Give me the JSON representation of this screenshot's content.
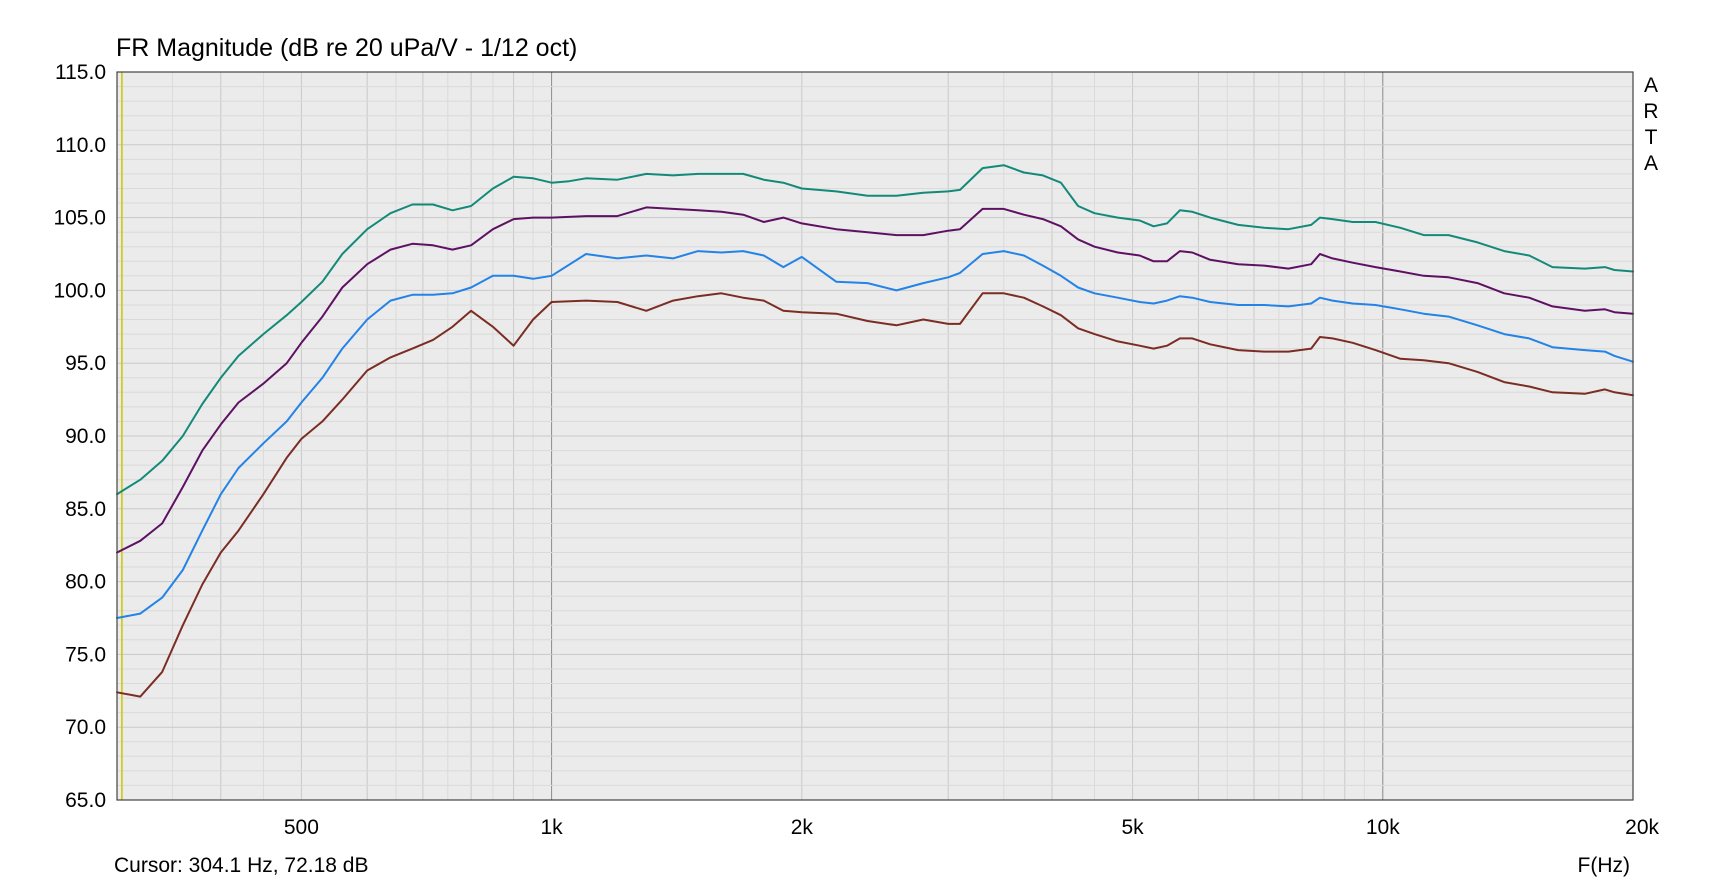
{
  "chart_data": {
    "type": "line",
    "title": "FR Magnitude (dB re 20 uPa/V - 1/12 oct)",
    "xlabel": "F(Hz)",
    "xscale": "log",
    "xlim": [
      300,
      20000
    ],
    "ylim": [
      65,
      115
    ],
    "y_ticks": [
      "115.0",
      "110.0",
      "105.0",
      "100.0",
      "95.0",
      "90.0",
      "85.0",
      "80.0",
      "75.0",
      "70.0",
      "65.0"
    ],
    "x_ticks": [
      {
        "value": 500,
        "label": "500"
      },
      {
        "value": 1000,
        "label": "1k"
      },
      {
        "value": 2000,
        "label": "2k"
      },
      {
        "value": 5000,
        "label": "5k"
      },
      {
        "value": 10000,
        "label": "10k"
      },
      {
        "value": 20000,
        "label": "20k"
      }
    ],
    "grid": true,
    "brand": [
      "A",
      "R",
      "T",
      "A"
    ],
    "cursor_text": "Cursor: 304.1 Hz, 72.18 dB",
    "cursor_freq": 304.1,
    "colors": {
      "background": "#ebebeb",
      "cursor_line": "#c8c800"
    },
    "series": [
      {
        "color": "#138a79",
        "points": [
          [
            300,
            86.0
          ],
          [
            320,
            87.0
          ],
          [
            340,
            88.3
          ],
          [
            360,
            90.0
          ],
          [
            380,
            92.2
          ],
          [
            400,
            94.0
          ],
          [
            420,
            95.5
          ],
          [
            450,
            97.0
          ],
          [
            480,
            98.3
          ],
          [
            500,
            99.2
          ],
          [
            530,
            100.6
          ],
          [
            560,
            102.5
          ],
          [
            600,
            104.2
          ],
          [
            640,
            105.3
          ],
          [
            680,
            105.9
          ],
          [
            720,
            105.9
          ],
          [
            760,
            105.5
          ],
          [
            800,
            105.8
          ],
          [
            850,
            107.0
          ],
          [
            900,
            107.8
          ],
          [
            950,
            107.7
          ],
          [
            1000,
            107.4
          ],
          [
            1050,
            107.5
          ],
          [
            1100,
            107.7
          ],
          [
            1200,
            107.6
          ],
          [
            1300,
            108.0
          ],
          [
            1400,
            107.9
          ],
          [
            1500,
            108.0
          ],
          [
            1600,
            108.0
          ],
          [
            1700,
            108.0
          ],
          [
            1800,
            107.6
          ],
          [
            1900,
            107.4
          ],
          [
            2000,
            107.0
          ],
          [
            2200,
            106.8
          ],
          [
            2400,
            106.5
          ],
          [
            2600,
            106.5
          ],
          [
            2800,
            106.7
          ],
          [
            3000,
            106.8
          ],
          [
            3100,
            106.9
          ],
          [
            3300,
            108.4
          ],
          [
            3500,
            108.6
          ],
          [
            3700,
            108.1
          ],
          [
            3900,
            107.9
          ],
          [
            4100,
            107.4
          ],
          [
            4300,
            105.8
          ],
          [
            4500,
            105.3
          ],
          [
            4800,
            105.0
          ],
          [
            5100,
            104.8
          ],
          [
            5300,
            104.4
          ],
          [
            5500,
            104.6
          ],
          [
            5700,
            105.5
          ],
          [
            5900,
            105.4
          ],
          [
            6200,
            105.0
          ],
          [
            6700,
            104.5
          ],
          [
            7200,
            104.3
          ],
          [
            7700,
            104.2
          ],
          [
            8200,
            104.5
          ],
          [
            8400,
            105.0
          ],
          [
            8700,
            104.9
          ],
          [
            9200,
            104.7
          ],
          [
            9800,
            104.7
          ],
          [
            10500,
            104.3
          ],
          [
            11200,
            103.8
          ],
          [
            12000,
            103.8
          ],
          [
            13000,
            103.3
          ],
          [
            14000,
            102.7
          ],
          [
            15000,
            102.4
          ],
          [
            16000,
            101.6
          ],
          [
            17500,
            101.5
          ],
          [
            18500,
            101.6
          ],
          [
            19000,
            101.4
          ],
          [
            20000,
            101.3
          ]
        ]
      },
      {
        "color": "#5e1163",
        "points": [
          [
            300,
            82.0
          ],
          [
            320,
            82.8
          ],
          [
            340,
            84.0
          ],
          [
            360,
            86.5
          ],
          [
            380,
            89.0
          ],
          [
            400,
            90.8
          ],
          [
            420,
            92.3
          ],
          [
            450,
            93.6
          ],
          [
            480,
            95.0
          ],
          [
            500,
            96.4
          ],
          [
            530,
            98.2
          ],
          [
            560,
            100.2
          ],
          [
            600,
            101.8
          ],
          [
            640,
            102.8
          ],
          [
            680,
            103.2
          ],
          [
            720,
            103.1
          ],
          [
            760,
            102.8
          ],
          [
            800,
            103.1
          ],
          [
            850,
            104.2
          ],
          [
            900,
            104.9
          ],
          [
            950,
            105.0
          ],
          [
            1000,
            105.0
          ],
          [
            1100,
            105.1
          ],
          [
            1200,
            105.1
          ],
          [
            1300,
            105.7
          ],
          [
            1400,
            105.6
          ],
          [
            1500,
            105.5
          ],
          [
            1600,
            105.4
          ],
          [
            1700,
            105.2
          ],
          [
            1800,
            104.7
          ],
          [
            1900,
            105.0
          ],
          [
            2000,
            104.6
          ],
          [
            2200,
            104.2
          ],
          [
            2400,
            104.0
          ],
          [
            2600,
            103.8
          ],
          [
            2800,
            103.8
          ],
          [
            3000,
            104.1
          ],
          [
            3100,
            104.2
          ],
          [
            3300,
            105.6
          ],
          [
            3500,
            105.6
          ],
          [
            3700,
            105.2
          ],
          [
            3900,
            104.9
          ],
          [
            4100,
            104.4
          ],
          [
            4300,
            103.5
          ],
          [
            4500,
            103.0
          ],
          [
            4800,
            102.6
          ],
          [
            5100,
            102.4
          ],
          [
            5300,
            102.0
          ],
          [
            5500,
            102.0
          ],
          [
            5700,
            102.7
          ],
          [
            5900,
            102.6
          ],
          [
            6200,
            102.1
          ],
          [
            6700,
            101.8
          ],
          [
            7200,
            101.7
          ],
          [
            7700,
            101.5
          ],
          [
            8200,
            101.8
          ],
          [
            8400,
            102.5
          ],
          [
            8700,
            102.2
          ],
          [
            9200,
            101.9
          ],
          [
            9800,
            101.6
          ],
          [
            10500,
            101.3
          ],
          [
            11200,
            101.0
          ],
          [
            12000,
            100.9
          ],
          [
            13000,
            100.5
          ],
          [
            14000,
            99.8
          ],
          [
            15000,
            99.5
          ],
          [
            16000,
            98.9
          ],
          [
            17500,
            98.6
          ],
          [
            18500,
            98.7
          ],
          [
            19000,
            98.5
          ],
          [
            20000,
            98.4
          ]
        ]
      },
      {
        "color": "#2383e6",
        "points": [
          [
            300,
            77.5
          ],
          [
            320,
            77.8
          ],
          [
            340,
            78.9
          ],
          [
            360,
            80.8
          ],
          [
            380,
            83.5
          ],
          [
            400,
            86.0
          ],
          [
            420,
            87.8
          ],
          [
            450,
            89.5
          ],
          [
            480,
            91.0
          ],
          [
            500,
            92.3
          ],
          [
            530,
            94.0
          ],
          [
            560,
            96.0
          ],
          [
            600,
            98.0
          ],
          [
            640,
            99.3
          ],
          [
            680,
            99.7
          ],
          [
            720,
            99.7
          ],
          [
            760,
            99.8
          ],
          [
            800,
            100.2
          ],
          [
            850,
            101.0
          ],
          [
            900,
            101.0
          ],
          [
            950,
            100.8
          ],
          [
            1000,
            101.0
          ],
          [
            1100,
            102.5
          ],
          [
            1200,
            102.2
          ],
          [
            1300,
            102.4
          ],
          [
            1400,
            102.2
          ],
          [
            1500,
            102.7
          ],
          [
            1600,
            102.6
          ],
          [
            1700,
            102.7
          ],
          [
            1800,
            102.4
          ],
          [
            1900,
            101.6
          ],
          [
            2000,
            102.3
          ],
          [
            2200,
            100.6
          ],
          [
            2400,
            100.5
          ],
          [
            2600,
            100.0
          ],
          [
            2800,
            100.5
          ],
          [
            3000,
            100.9
          ],
          [
            3100,
            101.2
          ],
          [
            3300,
            102.5
          ],
          [
            3500,
            102.7
          ],
          [
            3700,
            102.4
          ],
          [
            3900,
            101.7
          ],
          [
            4100,
            101.0
          ],
          [
            4300,
            100.2
          ],
          [
            4500,
            99.8
          ],
          [
            4800,
            99.5
          ],
          [
            5100,
            99.2
          ],
          [
            5300,
            99.1
          ],
          [
            5500,
            99.3
          ],
          [
            5700,
            99.6
          ],
          [
            5900,
            99.5
          ],
          [
            6200,
            99.2
          ],
          [
            6700,
            99.0
          ],
          [
            7200,
            99.0
          ],
          [
            7700,
            98.9
          ],
          [
            8200,
            99.1
          ],
          [
            8400,
            99.5
          ],
          [
            8700,
            99.3
          ],
          [
            9200,
            99.1
          ],
          [
            9800,
            99.0
          ],
          [
            10500,
            98.7
          ],
          [
            11200,
            98.4
          ],
          [
            12000,
            98.2
          ],
          [
            13000,
            97.6
          ],
          [
            14000,
            97.0
          ],
          [
            15000,
            96.7
          ],
          [
            16000,
            96.1
          ],
          [
            17500,
            95.9
          ],
          [
            18500,
            95.8
          ],
          [
            19000,
            95.5
          ],
          [
            20000,
            95.1
          ]
        ]
      },
      {
        "color": "#7b2d23",
        "points": [
          [
            300,
            72.4
          ],
          [
            320,
            72.1
          ],
          [
            340,
            73.8
          ],
          [
            360,
            77.0
          ],
          [
            380,
            79.8
          ],
          [
            400,
            82.0
          ],
          [
            420,
            83.5
          ],
          [
            450,
            86.0
          ],
          [
            480,
            88.5
          ],
          [
            500,
            89.8
          ],
          [
            530,
            91.0
          ],
          [
            560,
            92.5
          ],
          [
            600,
            94.5
          ],
          [
            640,
            95.4
          ],
          [
            680,
            96.0
          ],
          [
            720,
            96.6
          ],
          [
            760,
            97.5
          ],
          [
            800,
            98.6
          ],
          [
            850,
            97.5
          ],
          [
            900,
            96.2
          ],
          [
            950,
            98.0
          ],
          [
            1000,
            99.2
          ],
          [
            1100,
            99.3
          ],
          [
            1200,
            99.2
          ],
          [
            1300,
            98.6
          ],
          [
            1400,
            99.3
          ],
          [
            1500,
            99.6
          ],
          [
            1600,
            99.8
          ],
          [
            1700,
            99.5
          ],
          [
            1800,
            99.3
          ],
          [
            1900,
            98.6
          ],
          [
            2000,
            98.5
          ],
          [
            2200,
            98.4
          ],
          [
            2400,
            97.9
          ],
          [
            2600,
            97.6
          ],
          [
            2800,
            98.0
          ],
          [
            3000,
            97.7
          ],
          [
            3100,
            97.7
          ],
          [
            3300,
            99.8
          ],
          [
            3500,
            99.8
          ],
          [
            3700,
            99.5
          ],
          [
            3900,
            98.9
          ],
          [
            4100,
            98.3
          ],
          [
            4300,
            97.4
          ],
          [
            4500,
            97.0
          ],
          [
            4800,
            96.5
          ],
          [
            5100,
            96.2
          ],
          [
            5300,
            96.0
          ],
          [
            5500,
            96.2
          ],
          [
            5700,
            96.7
          ],
          [
            5900,
            96.7
          ],
          [
            6200,
            96.3
          ],
          [
            6700,
            95.9
          ],
          [
            7200,
            95.8
          ],
          [
            7700,
            95.8
          ],
          [
            8200,
            96.0
          ],
          [
            8400,
            96.8
          ],
          [
            8700,
            96.7
          ],
          [
            9200,
            96.4
          ],
          [
            9800,
            95.9
          ],
          [
            10500,
            95.3
          ],
          [
            11200,
            95.2
          ],
          [
            12000,
            95.0
          ],
          [
            13000,
            94.4
          ],
          [
            14000,
            93.7
          ],
          [
            15000,
            93.4
          ],
          [
            16000,
            93.0
          ],
          [
            17500,
            92.9
          ],
          [
            18500,
            93.2
          ],
          [
            19000,
            93.0
          ],
          [
            20000,
            92.8
          ]
        ]
      }
    ]
  }
}
